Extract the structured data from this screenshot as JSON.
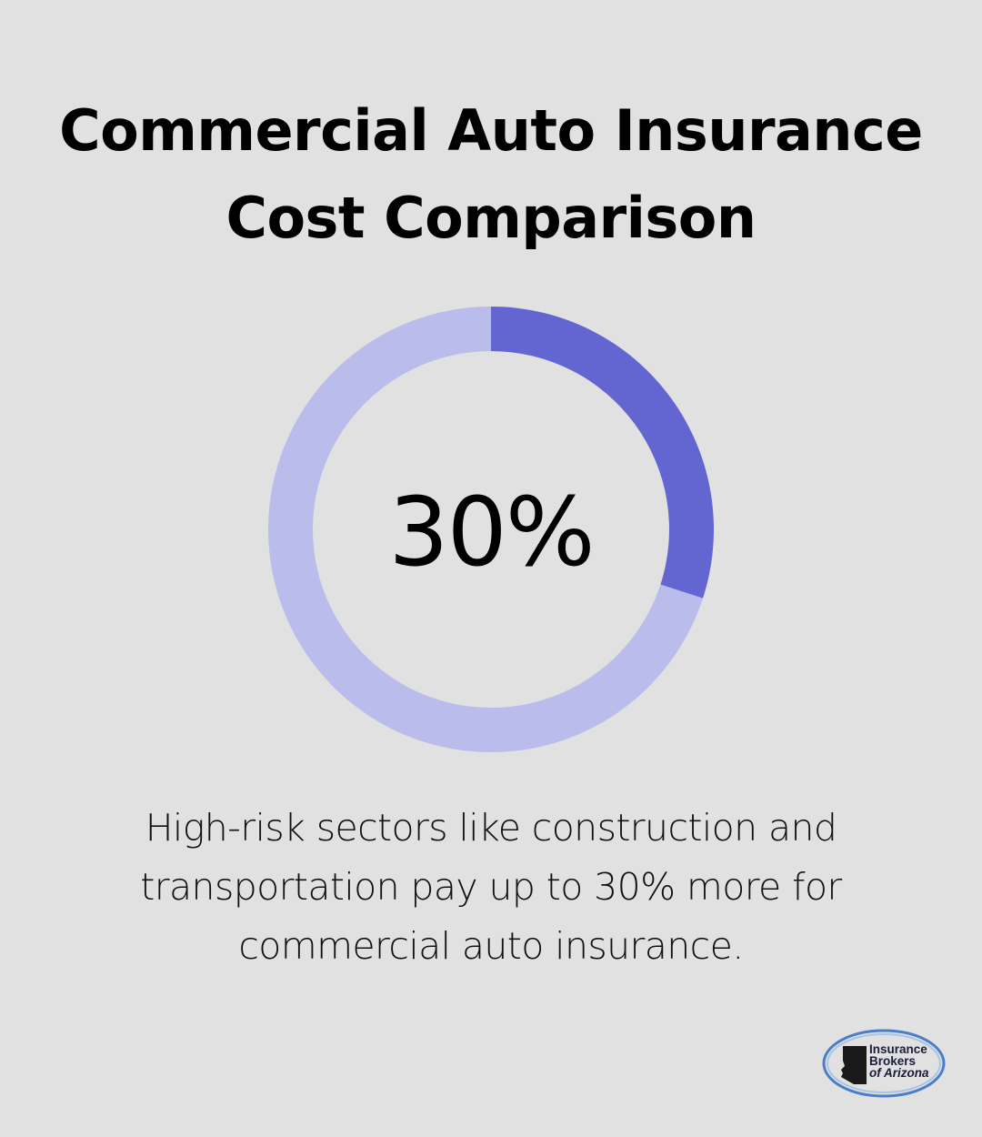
{
  "title": {
    "line1": "Commercial Auto Insurance",
    "line2": "Cost Comparison"
  },
  "chart_data": {
    "type": "pie",
    "categories": [
      "",
      ""
    ],
    "values": [
      30,
      70
    ],
    "center_label": "30%"
  },
  "caption": {
    "line1": "High-risk sectors like construction and",
    "line2": "transportation pay up to 30% more for",
    "line3": "commercial auto insurance."
  },
  "logo": {
    "line1": "Insurance",
    "line2": "Brokers",
    "line3": "of Arizona",
    "icon": "arizona-map-icon"
  },
  "colors": {
    "background": "#e0e1e0",
    "highlight": "#6366d1",
    "remainder": "#babdeb",
    "text": "#000000"
  }
}
